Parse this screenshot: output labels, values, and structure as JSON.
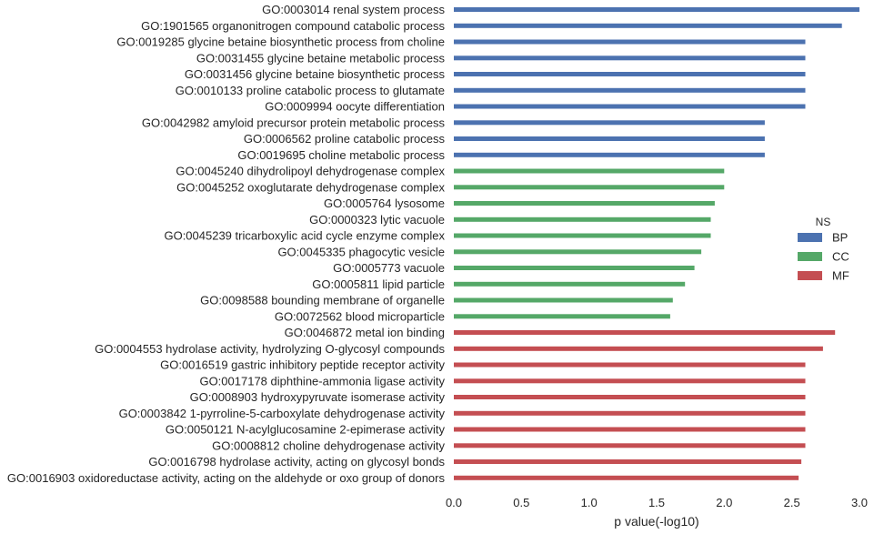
{
  "chart_data": {
    "type": "bar",
    "orientation": "horizontal",
    "xlabel": "p value(-log10)",
    "ylabel": "",
    "xlim": [
      0,
      3.0
    ],
    "xticks": [
      "0.0",
      "0.5",
      "1.0",
      "1.5",
      "2.0",
      "2.5",
      "3.0"
    ],
    "grid": false,
    "legend": {
      "title": "NS",
      "position": "right",
      "entries": [
        {
          "name": "BP",
          "color": "#4c72b0"
        },
        {
          "name": "CC",
          "color": "#55a868"
        },
        {
          "name": "MF",
          "color": "#c44e52"
        }
      ]
    },
    "bars": [
      {
        "label": "GO:0003014 renal system process",
        "ns": "BP",
        "value": 3.0
      },
      {
        "label": "GO:1901565 organonitrogen compound catabolic process",
        "ns": "BP",
        "value": 2.87
      },
      {
        "label": "GO:0019285 glycine betaine biosynthetic process from choline",
        "ns": "BP",
        "value": 2.6
      },
      {
        "label": "GO:0031455 glycine betaine metabolic process",
        "ns": "BP",
        "value": 2.6
      },
      {
        "label": "GO:0031456 glycine betaine biosynthetic process",
        "ns": "BP",
        "value": 2.6
      },
      {
        "label": "GO:0010133 proline catabolic process to glutamate",
        "ns": "BP",
        "value": 2.6
      },
      {
        "label": "GO:0009994 oocyte differentiation",
        "ns": "BP",
        "value": 2.6
      },
      {
        "label": "GO:0042982 amyloid precursor protein metabolic process",
        "ns": "BP",
        "value": 2.3
      },
      {
        "label": "GO:0006562 proline catabolic process",
        "ns": "BP",
        "value": 2.3
      },
      {
        "label": "GO:0019695 choline metabolic process",
        "ns": "BP",
        "value": 2.3
      },
      {
        "label": "GO:0045240 dihydrolipoyl dehydrogenase complex",
        "ns": "CC",
        "value": 2.0
      },
      {
        "label": "GO:0045252 oxoglutarate dehydrogenase complex",
        "ns": "CC",
        "value": 2.0
      },
      {
        "label": "GO:0005764 lysosome",
        "ns": "CC",
        "value": 1.93
      },
      {
        "label": "GO:0000323 lytic vacuole",
        "ns": "CC",
        "value": 1.9
      },
      {
        "label": "GO:0045239 tricarboxylic acid cycle enzyme complex",
        "ns": "CC",
        "value": 1.9
      },
      {
        "label": "GO:0045335 phagocytic vesicle",
        "ns": "CC",
        "value": 1.83
      },
      {
        "label": "GO:0005773 vacuole",
        "ns": "CC",
        "value": 1.78
      },
      {
        "label": "GO:0005811 lipid particle",
        "ns": "CC",
        "value": 1.71
      },
      {
        "label": "GO:0098588 bounding membrane of organelle",
        "ns": "CC",
        "value": 1.62
      },
      {
        "label": "GO:0072562 blood microparticle",
        "ns": "CC",
        "value": 1.6
      },
      {
        "label": "GO:0046872 metal ion binding",
        "ns": "MF",
        "value": 2.82
      },
      {
        "label": "GO:0004553 hydrolase activity, hydrolyzing O-glycosyl compounds",
        "ns": "MF",
        "value": 2.73
      },
      {
        "label": "GO:0016519 gastric inhibitory peptide receptor activity",
        "ns": "MF",
        "value": 2.6
      },
      {
        "label": "GO:0017178 diphthine-ammonia ligase activity",
        "ns": "MF",
        "value": 2.6
      },
      {
        "label": "GO:0008903 hydroxypyruvate isomerase activity",
        "ns": "MF",
        "value": 2.6
      },
      {
        "label": "GO:0003842 1-pyrroline-5-carboxylate dehydrogenase activity",
        "ns": "MF",
        "value": 2.6
      },
      {
        "label": "GO:0050121 N-acylglucosamine 2-epimerase activity",
        "ns": "MF",
        "value": 2.6
      },
      {
        "label": "GO:0008812 choline dehydrogenase activity",
        "ns": "MF",
        "value": 2.6
      },
      {
        "label": "GO:0016798 hydrolase activity, acting on glycosyl bonds",
        "ns": "MF",
        "value": 2.57
      },
      {
        "label": "GO:0016903 oxidoreductase activity, acting on the aldehyde or oxo group of donors",
        "ns": "MF",
        "value": 2.55
      }
    ]
  }
}
